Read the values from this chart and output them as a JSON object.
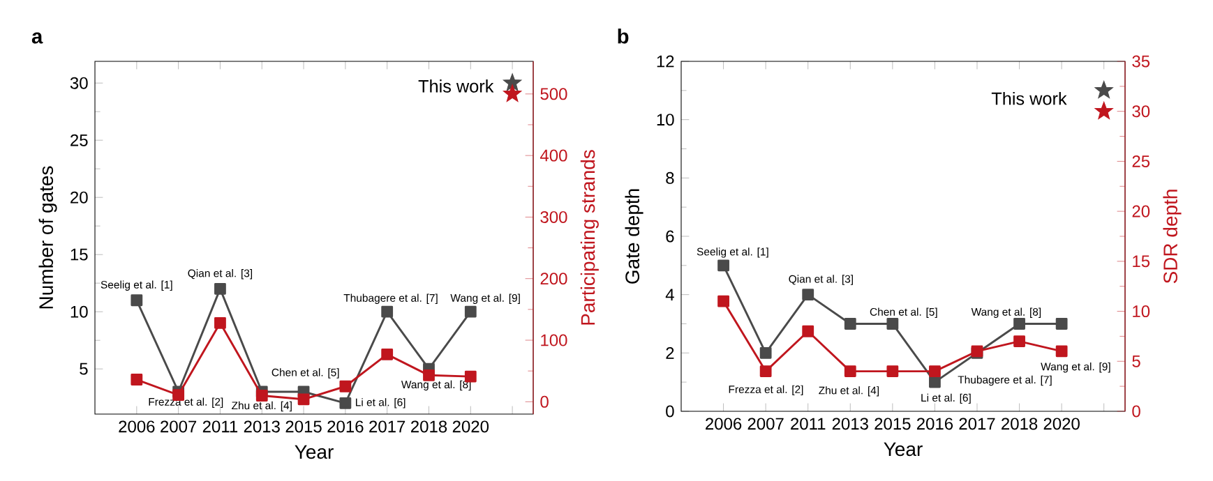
{
  "chart_data": [
    {
      "type": "line",
      "title": "a",
      "xlabel": "Year",
      "ylabel": "Number of gates",
      "y2label": "Participating strands",
      "categories": [
        "2006",
        "2007",
        "2011",
        "2013",
        "2015",
        "2016",
        "2017",
        "2018",
        "2020",
        null
      ],
      "marker": "square",
      "grid": false,
      "ylim": [
        1.05,
        31.9
      ],
      "yticks": [
        5,
        10,
        15,
        20,
        25,
        30
      ],
      "y2lim": [
        -20,
        553
      ],
      "y2ticks": [
        0,
        100,
        200,
        300,
        400,
        500
      ],
      "series": [
        {
          "color": "#4a4a4a",
          "values": [
            11,
            3,
            12,
            3,
            3,
            2,
            10,
            5,
            10,
            null
          ]
        },
        {
          "color": "#c0161e",
          "axis": "y2",
          "values": [
            36,
            11,
            128,
            10,
            4,
            25,
            77,
            43,
            41,
            null
          ]
        },
        {
          "type": "scatter",
          "marker": "star",
          "color": "#4a4a4a",
          "values": [
            null,
            null,
            null,
            null,
            null,
            null,
            null,
            null,
            null,
            30
          ]
        },
        {
          "type": "scatter",
          "marker": "star",
          "color": "#c0161e",
          "axis": "y2",
          "values": [
            null,
            null,
            null,
            null,
            null,
            null,
            null,
            null,
            null,
            500
          ]
        }
      ],
      "annotations": [
        {
          "text": "Seelig et al. [1]",
          "x": "2006",
          "y": 11
        },
        {
          "text": "Frezza et al. [2]",
          "x": "2007",
          "y": 3
        },
        {
          "text": "Qian et al. [3]",
          "x": "2011",
          "y": 12
        },
        {
          "text": "Zhu et al. [4]",
          "x": "2013",
          "y": 3
        },
        {
          "text": "Chen et al. [5]",
          "x": "2015",
          "y": 3
        },
        {
          "text": "Li et al. [6]",
          "x": "2016",
          "y": 2
        },
        {
          "text": "Thubagere et al. [7]",
          "x": "2017",
          "y": 10
        },
        {
          "text": "Wang et al. [8]",
          "x": "2018",
          "y": 5
        },
        {
          "text": "Wang et al. [9]",
          "x": "2020",
          "y": 10
        },
        "This work"
      ]
    },
    {
      "type": "line",
      "title": "b",
      "xlabel": "Year",
      "ylabel": "Gate depth",
      "y2label": "SDR depth",
      "categories": [
        "2006",
        "2007",
        "2011",
        "2013",
        "2015",
        "2016",
        "2017",
        "2018",
        "2020",
        null
      ],
      "marker": "square",
      "grid": false,
      "ylim": [
        0,
        12
      ],
      "yticks": [
        0,
        2,
        4,
        6,
        8,
        10,
        12
      ],
      "y2lim": [
        0,
        35
      ],
      "y2ticks": [
        0,
        5,
        10,
        15,
        20,
        25,
        30,
        35
      ],
      "series": [
        {
          "color": "#4a4a4a",
          "values": [
            5,
            2,
            4,
            3,
            3,
            1,
            2,
            3,
            3,
            null
          ]
        },
        {
          "color": "#c0161e",
          "axis": "y2",
          "values": [
            11,
            4,
            8,
            4,
            4,
            4,
            6,
            7,
            6,
            null
          ]
        },
        {
          "type": "scatter",
          "marker": "star",
          "color": "#4a4a4a",
          "values": [
            null,
            null,
            null,
            null,
            null,
            null,
            null,
            null,
            null,
            11
          ]
        },
        {
          "type": "scatter",
          "marker": "star",
          "color": "#c0161e",
          "axis": "y2",
          "values": [
            null,
            null,
            null,
            null,
            null,
            null,
            null,
            null,
            null,
            30
          ]
        }
      ],
      "annotations": [
        {
          "text": "Seelig et al. [1]",
          "x": "2006",
          "y": 5
        },
        "Frezza et al. [2]",
        {
          "text": "Qian et al. [3]",
          "x": "2011",
          "y": 4
        },
        "Zhu et al. [4]",
        {
          "text": "Chen et al. [5]",
          "x": "2015",
          "y": 3
        },
        {
          "text": "Li et al. [6]",
          "x": "2016",
          "y": 1
        },
        {
          "text": "Thubagere et al. [7]",
          "x": "2017",
          "y": 2
        },
        {
          "text": "Wang et al. [8]",
          "x": "2018",
          "y": 3
        },
        "Wang et al. [9]",
        "This work"
      ]
    }
  ]
}
